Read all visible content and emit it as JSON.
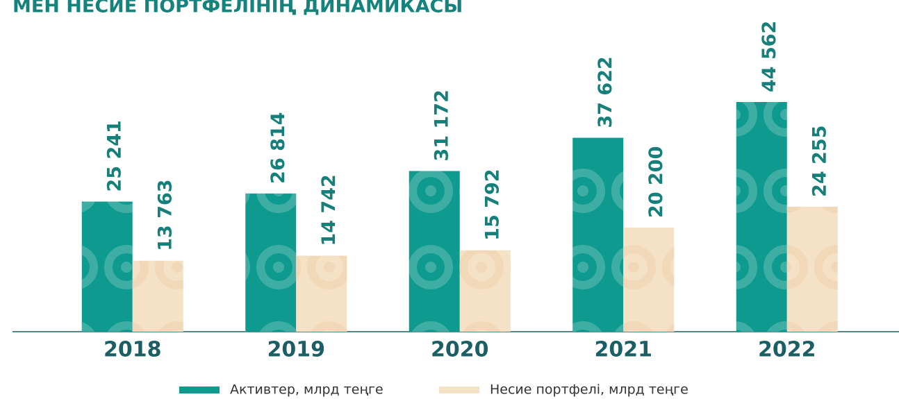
{
  "chart_data": {
    "type": "bar",
    "title": "МЕН НЕСИЕ ПОРТФЕЛІНІҢ ДИНАМИКАСЫ",
    "categories": [
      "2018",
      "2019",
      "2020",
      "2021",
      "2022"
    ],
    "series": [
      {
        "name": "Активтер, млрд теңге",
        "color": "#0e9a8e",
        "values": [
          25241,
          26814,
          31172,
          37622,
          44562
        ],
        "value_labels": [
          "25 241",
          "26 814",
          "31 172",
          "37 622",
          "44 562"
        ]
      },
      {
        "name": "Несие портфелі, млрд теңге",
        "color": "#f5e1c6",
        "values": [
          13763,
          14742,
          15792,
          20200,
          24255
        ],
        "value_labels": [
          "13 763",
          "14 742",
          "15 792",
          "20 200",
          "24 255"
        ]
      }
    ]
  }
}
